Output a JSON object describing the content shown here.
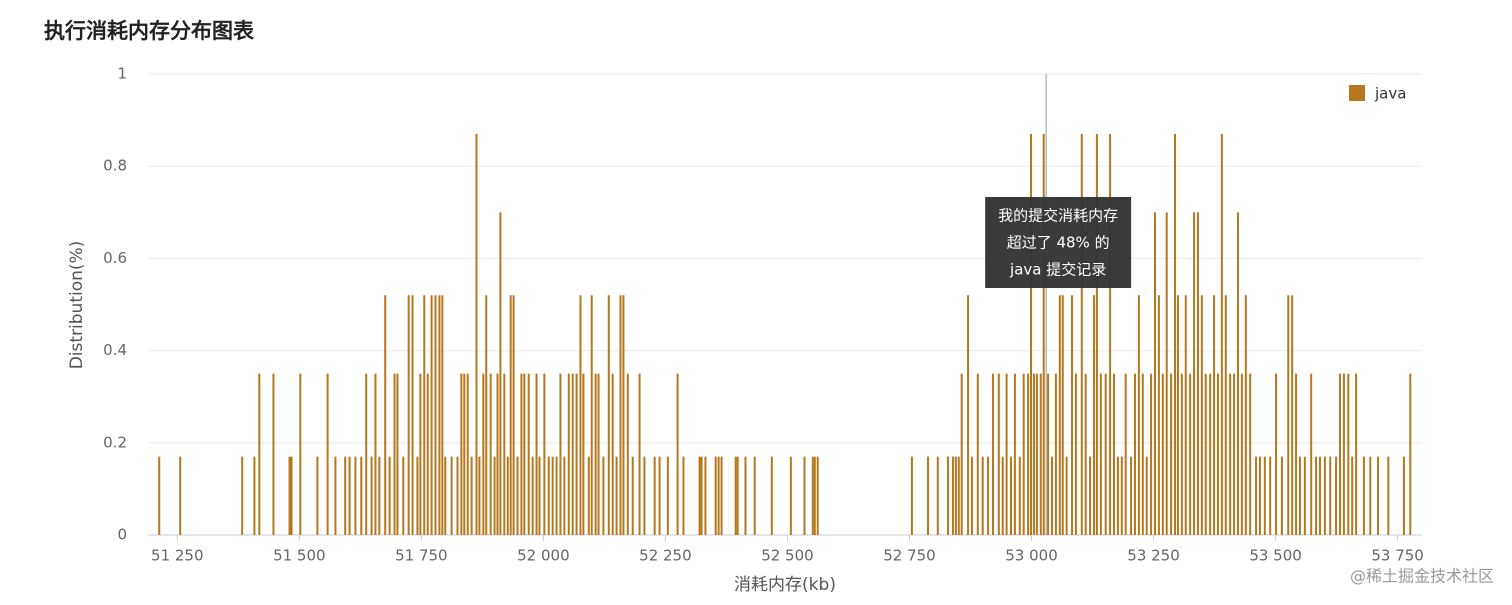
{
  "chart_data": {
    "type": "bar",
    "title": "执行消耗内存分布图表",
    "x_label": "消耗内存(kb)",
    "y_label": "Distribution(%)",
    "series": [
      {
        "name": "java",
        "color": "#b5781e",
        "x": [
          51213,
          51256,
          51383,
          51408,
          51418,
          51447,
          51480,
          51484,
          51502,
          51537,
          51558,
          51574,
          51594,
          51603,
          51615,
          51627,
          51637,
          51648,
          51656,
          51664,
          51676,
          51685,
          51695,
          51701,
          51713,
          51724,
          51732,
          51742,
          51748,
          51756,
          51763,
          51771,
          51779,
          51787,
          51793,
          51799,
          51812,
          51824,
          51832,
          51838,
          51845,
          51853,
          51863,
          51869,
          51877,
          51883,
          51892,
          51900,
          51906,
          51912,
          51920,
          51927,
          51933,
          51939,
          51947,
          51955,
          51961,
          51970,
          51978,
          51986,
          51992,
          52002,
          52011,
          52019,
          52027,
          52035,
          52043,
          52052,
          52060,
          52068,
          52076,
          52082,
          52093,
          52099,
          52107,
          52113,
          52123,
          52134,
          52142,
          52150,
          52158,
          52164,
          52173,
          52183,
          52197,
          52207,
          52228,
          52238,
          52255,
          52275,
          52287,
          52320,
          52324,
          52332,
          52353,
          52359,
          52365,
          52394,
          52398,
          52414,
          52433,
          52468,
          52507,
          52535,
          52552,
          52556,
          52562,
          52755,
          52788,
          52808,
          52829,
          52839,
          52845,
          52851,
          52857,
          52870,
          52878,
          52890,
          52900,
          52911,
          52921,
          52933,
          52941,
          52949,
          52958,
          52966,
          52976,
          52984,
          52993,
          52999,
          53005,
          53011,
          53019,
          53025,
          53034,
          53042,
          53050,
          53058,
          53064,
          53072,
          53083,
          53091,
          53103,
          53111,
          53120,
          53128,
          53134,
          53142,
          53152,
          53161,
          53169,
          53177,
          53185,
          53193,
          53204,
          53212,
          53220,
          53228,
          53236,
          53245,
          53253,
          53261,
          53269,
          53277,
          53286,
          53294,
          53300,
          53308,
          53316,
          53325,
          53333,
          53341,
          53349,
          53357,
          53366,
          53374,
          53382,
          53390,
          53398,
          53407,
          53415,
          53423,
          53431,
          53439,
          53448,
          53460,
          53468,
          53478,
          53489,
          53501,
          53513,
          53526,
          53534,
          53542,
          53550,
          53560,
          53573,
          53583,
          53591,
          53601,
          53612,
          53624,
          53632,
          53640,
          53649,
          53657,
          53665,
          53681,
          53694,
          53710,
          53731,
          53763,
          53776
        ],
        "values": [
          0.17,
          0.17,
          0.17,
          0.17,
          0.35,
          0.35,
          0.17,
          0.17,
          0.35,
          0.17,
          0.35,
          0.17,
          0.17,
          0.17,
          0.17,
          0.17,
          0.35,
          0.17,
          0.35,
          0.17,
          0.52,
          0.17,
          0.35,
          0.35,
          0.17,
          0.52,
          0.52,
          0.17,
          0.35,
          0.52,
          0.35,
          0.52,
          0.52,
          0.52,
          0.52,
          0.17,
          0.17,
          0.17,
          0.35,
          0.35,
          0.35,
          0.17,
          0.87,
          0.17,
          0.35,
          0.52,
          0.35,
          0.17,
          0.35,
          0.7,
          0.35,
          0.17,
          0.52,
          0.52,
          0.17,
          0.35,
          0.35,
          0.35,
          0.17,
          0.35,
          0.17,
          0.35,
          0.17,
          0.17,
          0.17,
          0.35,
          0.17,
          0.35,
          0.35,
          0.35,
          0.52,
          0.35,
          0.17,
          0.52,
          0.35,
          0.35,
          0.17,
          0.52,
          0.35,
          0.17,
          0.52,
          0.52,
          0.35,
          0.17,
          0.35,
          0.17,
          0.17,
          0.17,
          0.17,
          0.35,
          0.17,
          0.17,
          0.17,
          0.17,
          0.17,
          0.17,
          0.17,
          0.17,
          0.17,
          0.17,
          0.17,
          0.17,
          0.17,
          0.17,
          0.17,
          0.17,
          0.17,
          0.17,
          0.17,
          0.17,
          0.17,
          0.17,
          0.17,
          0.17,
          0.35,
          0.52,
          0.17,
          0.35,
          0.17,
          0.17,
          0.35,
          0.35,
          0.17,
          0.35,
          0.17,
          0.35,
          0.17,
          0.35,
          0.35,
          0.87,
          0.35,
          0.35,
          0.35,
          0.87,
          0.35,
          0.17,
          0.35,
          0.52,
          0.52,
          0.17,
          0.52,
          0.35,
          0.87,
          0.35,
          0.17,
          0.52,
          0.87,
          0.35,
          0.35,
          0.87,
          0.35,
          0.17,
          0.17,
          0.35,
          0.17,
          0.35,
          0.52,
          0.35,
          0.17,
          0.35,
          0.7,
          0.52,
          0.35,
          0.7,
          0.35,
          0.87,
          0.52,
          0.35,
          0.52,
          0.35,
          0.7,
          0.7,
          0.52,
          0.35,
          0.35,
          0.52,
          0.35,
          0.87,
          0.52,
          0.35,
          0.35,
          0.7,
          0.35,
          0.52,
          0.35,
          0.17,
          0.17,
          0.17,
          0.17,
          0.35,
          0.17,
          0.52,
          0.52,
          0.35,
          0.17,
          0.17,
          0.35,
          0.17,
          0.17,
          0.17,
          0.17,
          0.17,
          0.35,
          0.35,
          0.35,
          0.17,
          0.35,
          0.17,
          0.17,
          0.17,
          0.17,
          0.17,
          0.35
        ]
      }
    ],
    "xlim": [
      51190,
      53800
    ],
    "xticks": [
      {
        "value": 51250,
        "label": "51 250"
      },
      {
        "value": 51500,
        "label": "51 500"
      },
      {
        "value": 51750,
        "label": "51 750"
      },
      {
        "value": 52000,
        "label": "52 000"
      },
      {
        "value": 52250,
        "label": "52 250"
      },
      {
        "value": 52500,
        "label": "52 500"
      },
      {
        "value": 52750,
        "label": "52 750"
      },
      {
        "value": 53000,
        "label": "53 000"
      },
      {
        "value": 53250,
        "label": "53 250"
      },
      {
        "value": 53500,
        "label": "53 500"
      },
      {
        "value": 53750,
        "label": "53 750"
      }
    ],
    "ylim": [
      0,
      1
    ],
    "yticks": [
      0,
      0.2,
      0.4,
      0.6,
      0.8,
      1
    ],
    "grid": true,
    "legend": "top-right",
    "annotation": {
      "x": 53030,
      "lines": [
        "我的提交消耗内存",
        "超过了 48% 的",
        "java 提交记录"
      ]
    },
    "watermark": "@稀土掘金技术社区"
  }
}
